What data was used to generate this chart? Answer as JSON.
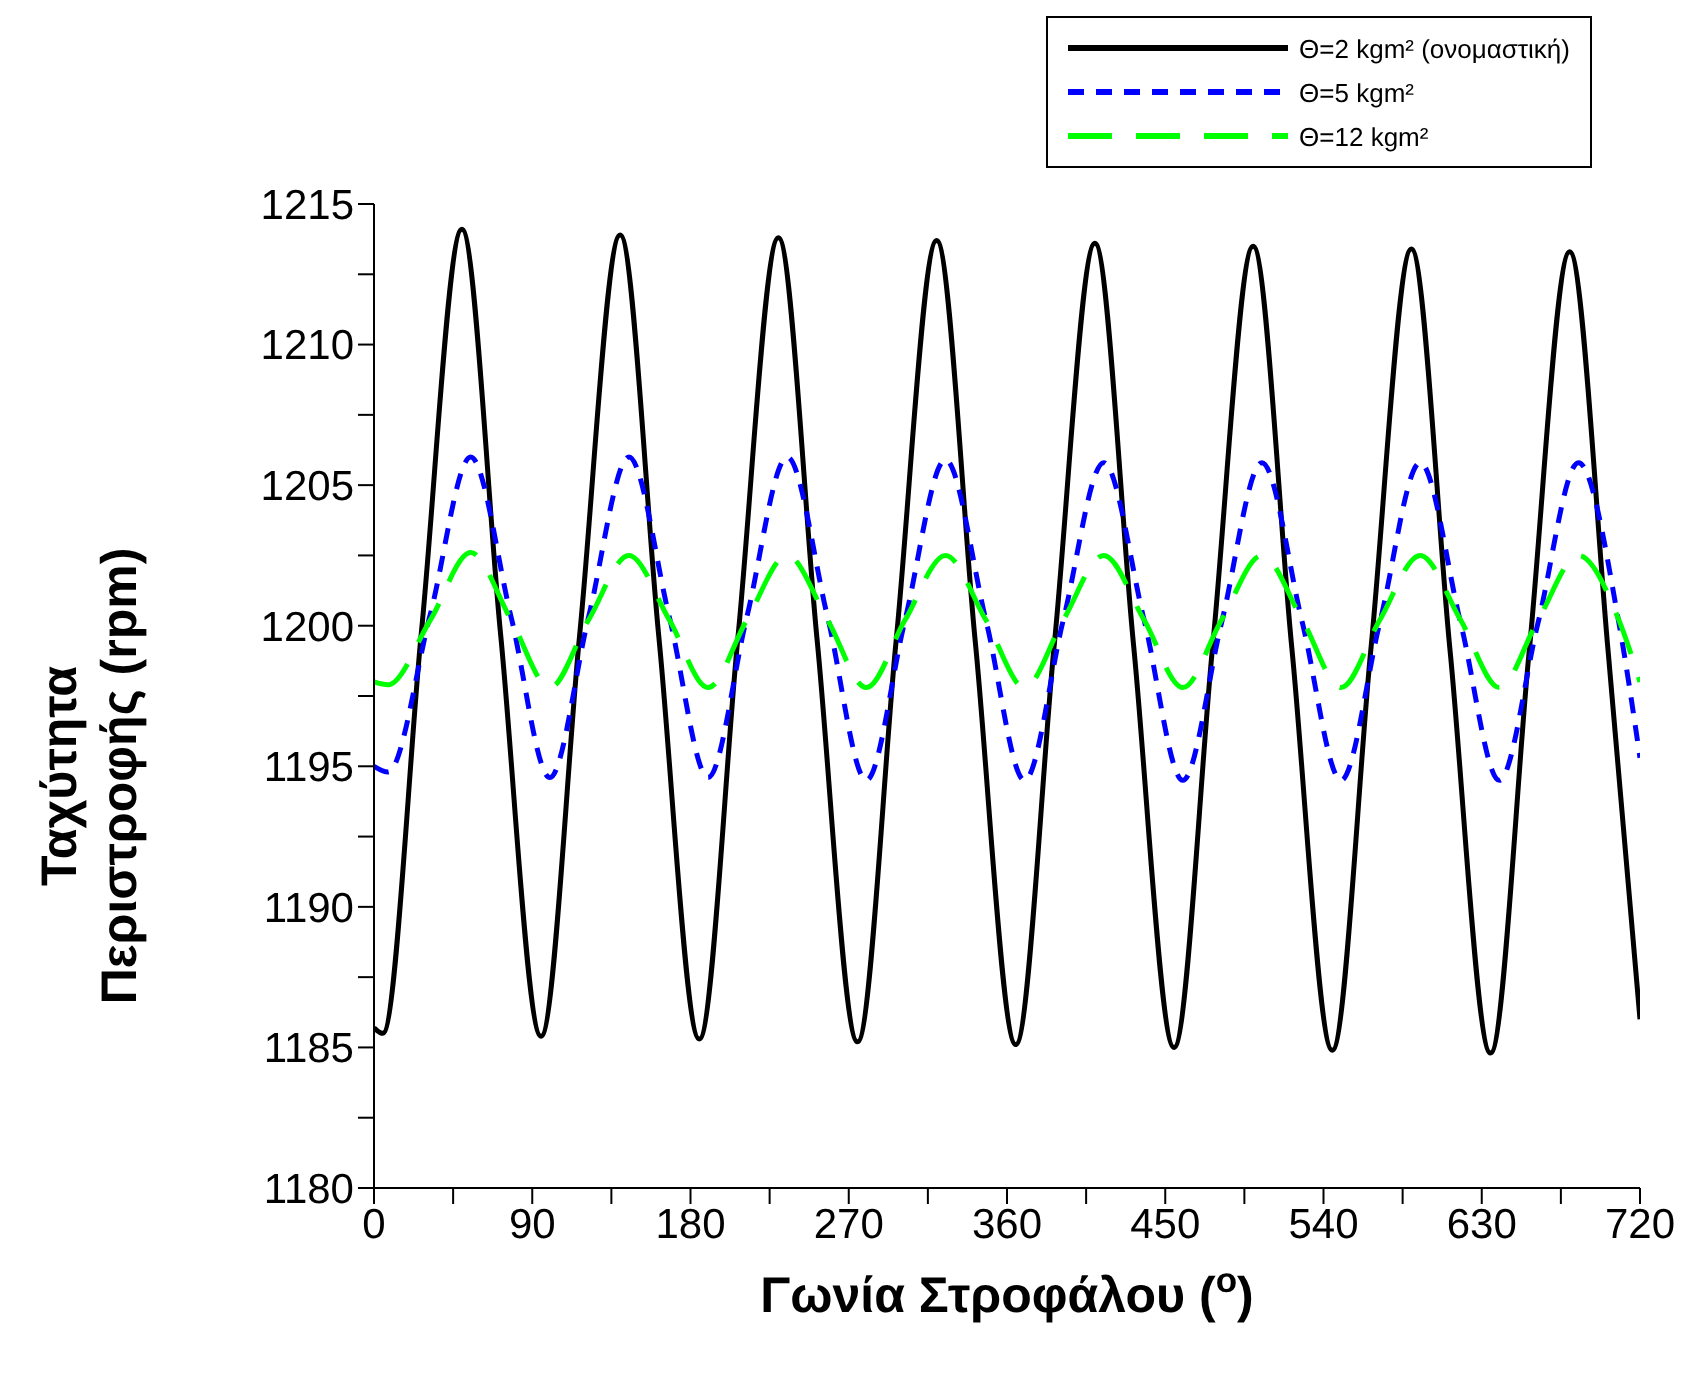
{
  "chart_data": {
    "type": "line",
    "xlabel": "Γωνία Στροφάλου ($^{o}$)",
    "ylabel": "Ταχύτητα Περιστροφής (rpm)",
    "xlim": [
      0,
      720
    ],
    "ylim": [
      1180,
      1215
    ],
    "xticks": [
      0,
      {
        "value": 45,
        "label": null
      },
      90,
      {
        "value": 135,
        "label": null
      },
      180,
      {
        "value": 225,
        "label": null
      },
      270,
      {
        "value": 315,
        "label": null
      },
      360,
      {
        "value": 405,
        "label": null
      },
      450,
      {
        "value": 495,
        "label": null
      },
      540,
      {
        "value": 585,
        "label": null
      },
      630,
      {
        "value": 675,
        "label": null
      },
      720
    ],
    "yticks": [
      1180,
      {
        "value": 1182.5,
        "label": null
      },
      1185,
      {
        "value": 1187.5,
        "label": null
      },
      1190,
      {
        "value": 1192.5,
        "label": null
      },
      1195,
      {
        "value": 1197.5,
        "label": null
      },
      1200,
      {
        "value": 1202.5,
        "label": null
      },
      1205,
      {
        "value": 1207.5,
        "label": null
      },
      1210,
      {
        "value": 1212.5,
        "label": null
      },
      1215
    ],
    "grid": false,
    "legend": "top right",
    "marker": "none",
    "series": [
      {
        "name": "Θ=2 kgm² (ονομαστική)",
        "color": "#000000",
        "line_style": "solid",
        "x": [
          0,
          5,
          27,
          50,
          72,
          95,
          117,
          140,
          162,
          185,
          207,
          230,
          252,
          275,
          297,
          320,
          342,
          365,
          387,
          410,
          432,
          455,
          477,
          500,
          522,
          545,
          567,
          590,
          612,
          635,
          657,
          680,
          702,
          720
        ],
        "values": [
          1185.7,
          1185.5,
          1199.8,
          1214.1,
          1199.7,
          1185.4,
          1199.7,
          1213.9,
          1199.6,
          1185.3,
          1199.6,
          1213.8,
          1199.5,
          1185.2,
          1199.5,
          1213.7,
          1199.4,
          1185.1,
          1199.4,
          1213.6,
          1199.3,
          1185.0,
          1199.3,
          1213.5,
          1199.2,
          1184.9,
          1199.2,
          1213.4,
          1199.1,
          1184.8,
          1199.1,
          1213.3,
          1199.0,
          1186.0
        ]
      },
      {
        "name": "Θ=5 kgm²",
        "color": "#0000ff",
        "line_style": "dashed",
        "x": [
          0,
          8,
          32,
          55,
          78,
          100,
          122,
          145,
          168,
          190,
          212,
          235,
          258,
          280,
          302,
          325,
          348,
          370,
          392,
          415,
          438,
          460,
          482,
          505,
          528,
          550,
          572,
          595,
          618,
          640,
          662,
          685,
          708,
          720
        ],
        "values": [
          1195.0,
          1194.8,
          1200.4,
          1206.0,
          1200.3,
          1194.6,
          1200.3,
          1206.0,
          1200.3,
          1194.6,
          1200.3,
          1206.0,
          1200.3,
          1194.5,
          1200.2,
          1205.9,
          1200.2,
          1194.5,
          1200.2,
          1205.8,
          1200.2,
          1194.5,
          1200.1,
          1205.8,
          1200.1,
          1194.5,
          1200.1,
          1205.8,
          1200.1,
          1194.5,
          1200.1,
          1205.8,
          1200.1,
          1195.3
        ]
      },
      {
        "name": "Θ=12 kgm²",
        "color": "#00ff00",
        "line_style": "dashed",
        "x": [
          0,
          8,
          32,
          55,
          78,
          100,
          122,
          145,
          168,
          190,
          212,
          235,
          258,
          280,
          302,
          325,
          348,
          370,
          392,
          415,
          438,
          460,
          482,
          505,
          528,
          550,
          572,
          595,
          618,
          640,
          662,
          685,
          708,
          720
        ],
        "values": [
          1198.0,
          1197.9,
          1200.2,
          1202.6,
          1200.2,
          1197.8,
          1200.2,
          1202.5,
          1200.2,
          1197.8,
          1200.2,
          1202.5,
          1200.2,
          1197.8,
          1200.2,
          1202.5,
          1200.2,
          1197.8,
          1200.2,
          1202.5,
          1200.2,
          1197.8,
          1200.2,
          1202.5,
          1200.2,
          1197.8,
          1200.2,
          1202.5,
          1200.2,
          1197.8,
          1200.2,
          1202.5,
          1200.2,
          1198.0
        ]
      }
    ]
  }
}
